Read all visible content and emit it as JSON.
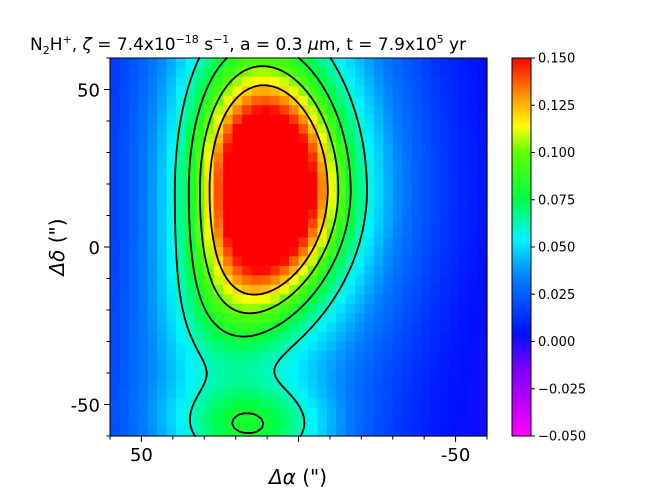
{
  "chart_data": {
    "type": "heatmap",
    "title": {
      "species": "N",
      "species_sub": "2",
      "species_rest": "H",
      "species_charge": "+",
      "zeta_prefix": ", ",
      "zeta_symbol": "ζ",
      "zeta_value": " = 7.4x10",
      "zeta_exp": "−18",
      "zeta_unit": " s",
      "zeta_unit_exp": "−1",
      "grain": ", a = 0.3 ",
      "grain_unit_mu": "μ",
      "grain_unit": "m, t = 7.9x10",
      "time_exp": "5",
      "time_unit": " yr"
    },
    "xlabel": {
      "symbol": "Δα",
      "unit": " (\")"
    },
    "ylabel": {
      "symbol": "Δδ",
      "unit": " (\")"
    },
    "xlim": [
      60,
      -60
    ],
    "ylim": [
      -60,
      60
    ],
    "x_ticks": [
      {
        "value": 50,
        "label": "50"
      },
      {
        "value": 0,
        "label": ""
      },
      {
        "value": -50,
        "label": "-50"
      }
    ],
    "y_ticks": [
      {
        "value": 50,
        "label": "50"
      },
      {
        "value": 0,
        "label": "0"
      },
      {
        "value": -50,
        "label": "-50"
      }
    ],
    "colorbar": {
      "min": -0.05,
      "max": 0.15,
      "ticks": [
        "0.150",
        "0.125",
        "0.100",
        "0.075",
        "0.050",
        "0.025",
        "0.000",
        "−0.025",
        "−0.050"
      ],
      "tick_values": [
        0.15,
        0.125,
        0.1,
        0.075,
        0.05,
        0.025,
        0.0,
        -0.025,
        -0.05
      ]
    },
    "colormap": "gist_rainbow-like (magenta → blue → cyan → green → yellow → orange → red)",
    "map_structure": {
      "peak": {
        "x": 10,
        "y": 20,
        "value": 0.145
      },
      "background_value": 0.01,
      "contour_levels": [
        0.06,
        0.08,
        0.1,
        0.12
      ],
      "contour_color": "#000000"
    }
  }
}
